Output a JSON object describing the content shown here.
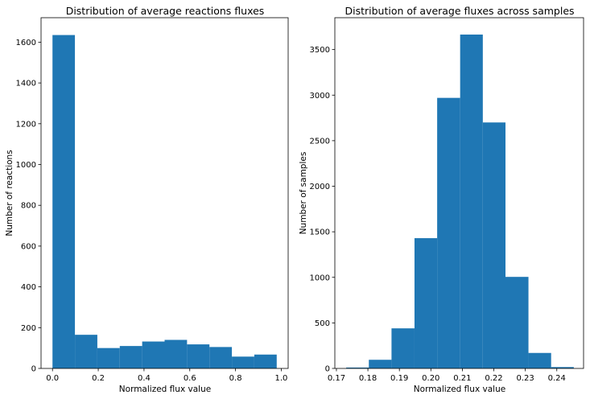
{
  "chart_data": [
    {
      "type": "histogram",
      "title": "Distribution of average reactions fluxes",
      "xlabel": "Normalized flux value",
      "ylabel": "Number of reactions",
      "xlim": [
        -0.05,
        1.03
      ],
      "ylim": [
        0,
        1720
      ],
      "bar_color": "#1f77b4",
      "bins": [
        {
          "x0": 0.0,
          "x1": 0.098,
          "value": 1635
        },
        {
          "x0": 0.098,
          "x1": 0.196,
          "value": 165
        },
        {
          "x0": 0.196,
          "x1": 0.294,
          "value": 100
        },
        {
          "x0": 0.294,
          "x1": 0.392,
          "value": 110
        },
        {
          "x0": 0.392,
          "x1": 0.49,
          "value": 132
        },
        {
          "x0": 0.49,
          "x1": 0.588,
          "value": 140
        },
        {
          "x0": 0.588,
          "x1": 0.686,
          "value": 118
        },
        {
          "x0": 0.686,
          "x1": 0.784,
          "value": 105
        },
        {
          "x0": 0.784,
          "x1": 0.882,
          "value": 58
        },
        {
          "x0": 0.882,
          "x1": 0.98,
          "value": 68
        }
      ],
      "xticks": [
        0.0,
        0.2,
        0.4,
        0.6,
        0.8,
        1.0
      ],
      "xtick_labels": [
        "0.0",
        "0.2",
        "0.4",
        "0.6",
        "0.8",
        "1.0"
      ],
      "yticks": [
        0,
        200,
        400,
        600,
        800,
        1000,
        1200,
        1400,
        1600
      ],
      "ytick_labels": [
        "0",
        "200",
        "400",
        "600",
        "800",
        "1000",
        "1200",
        "1400",
        "1600"
      ]
    },
    {
      "type": "histogram",
      "title": "Distribution of average fluxes across samples",
      "xlabel": "Normalized flux value",
      "ylabel": "Number of samples",
      "xlim": [
        0.1695,
        0.2485
      ],
      "ylim": [
        0,
        3850
      ],
      "bar_color": "#1f77b4",
      "bins": [
        {
          "x0": 0.1731,
          "x1": 0.1803,
          "value": 10
        },
        {
          "x0": 0.1803,
          "x1": 0.1875,
          "value": 95
        },
        {
          "x0": 0.1875,
          "x1": 0.1948,
          "value": 440
        },
        {
          "x0": 0.1948,
          "x1": 0.202,
          "value": 1430
        },
        {
          "x0": 0.202,
          "x1": 0.2093,
          "value": 2970
        },
        {
          "x0": 0.2093,
          "x1": 0.2165,
          "value": 3665
        },
        {
          "x0": 0.2165,
          "x1": 0.2237,
          "value": 2700
        },
        {
          "x0": 0.2237,
          "x1": 0.231,
          "value": 1005
        },
        {
          "x0": 0.231,
          "x1": 0.2382,
          "value": 170
        },
        {
          "x0": 0.2382,
          "x1": 0.2454,
          "value": 15
        }
      ],
      "xticks": [
        0.17,
        0.18,
        0.19,
        0.2,
        0.21,
        0.22,
        0.23,
        0.24
      ],
      "xtick_labels": [
        "0.17",
        "0.18",
        "0.19",
        "0.20",
        "0.21",
        "0.22",
        "0.23",
        "0.24"
      ],
      "yticks": [
        0,
        500,
        1000,
        1500,
        2000,
        2500,
        3000,
        3500
      ],
      "ytick_labels": [
        "0",
        "500",
        "1000",
        "1500",
        "2000",
        "2500",
        "3000",
        "3500"
      ]
    }
  ]
}
